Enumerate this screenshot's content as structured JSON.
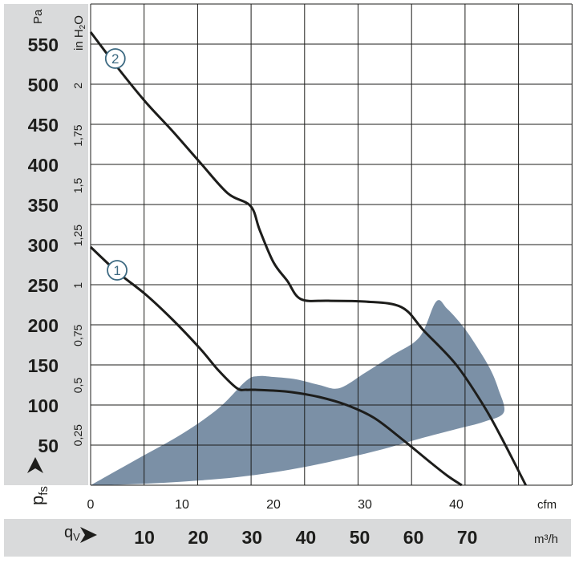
{
  "chart_data": {
    "type": "line",
    "title": "",
    "y_axis_primary": {
      "unit": "Pa",
      "range": [
        0,
        600
      ],
      "ticks": [
        "50",
        "100",
        "150",
        "200",
        "250",
        "300",
        "350",
        "400",
        "450",
        "500",
        "550"
      ]
    },
    "y_axis_secondary": {
      "unit_main": "in H",
      "unit_sub": "2",
      "unit_tail": "O",
      "ticks": [
        "0,25",
        "0,5",
        "0,75",
        "1",
        "1,25",
        "1,5",
        "1,75",
        "2"
      ]
    },
    "y_label": {
      "main": "p",
      "sub": "fs"
    },
    "x_axis_cfm": {
      "unit": "cfm",
      "range": [
        0,
        53
      ],
      "ticks": [
        "0",
        "10",
        "20",
        "30",
        "40"
      ]
    },
    "x_axis_m3h": {
      "label_main": "q",
      "label_sub": "V",
      "unit": "m³/h",
      "ticks": [
        "10",
        "20",
        "30",
        "40",
        "50",
        "60",
        "70"
      ]
    },
    "grid": true,
    "series": [
      {
        "name": "1",
        "x_cfm": [
          0,
          3,
          6,
          9,
          12,
          14,
          16,
          17,
          18,
          20,
          22,
          25,
          28,
          31,
          34,
          37,
          39,
          40.6
        ],
        "y_pa": [
          297,
          265,
          238,
          206,
          170,
          143,
          121,
          119,
          119,
          118,
          116,
          110,
          100,
          84,
          58,
          30,
          12,
          0
        ]
      },
      {
        "name": "2",
        "x_cfm": [
          0,
          3,
          6,
          9,
          12,
          15,
          17.5,
          18.5,
          20,
          21.5,
          23,
          26,
          30,
          34,
          36.5,
          40,
          43,
          45,
          47.6
        ],
        "y_pa": [
          565,
          520,
          478,
          441,
          402,
          364,
          348,
          318,
          278,
          255,
          232,
          230,
          229,
          222,
          192,
          150,
          99,
          58,
          0
        ]
      }
    ],
    "shaded_region": {
      "color": "#7b90a6",
      "x_cfm": [
        0,
        5,
        10,
        14,
        17,
        18.3,
        20,
        22.5,
        25,
        27.2,
        30,
        33,
        36,
        37.8,
        39,
        40.8,
        42.4,
        43.7,
        44.6,
        45.2,
        43,
        40,
        36,
        32,
        28,
        24,
        20,
        16,
        12,
        8,
        4,
        0
      ],
      "y_pa": [
        0,
        32,
        64,
        96,
        130,
        136,
        135,
        132,
        125,
        121,
        140,
        162,
        185,
        229,
        220,
        197,
        170,
        145,
        120,
        91,
        79,
        70,
        58,
        45,
        34,
        24,
        16,
        10,
        6,
        3,
        1,
        0
      ]
    },
    "curve_labels": [
      "1",
      "2"
    ]
  }
}
